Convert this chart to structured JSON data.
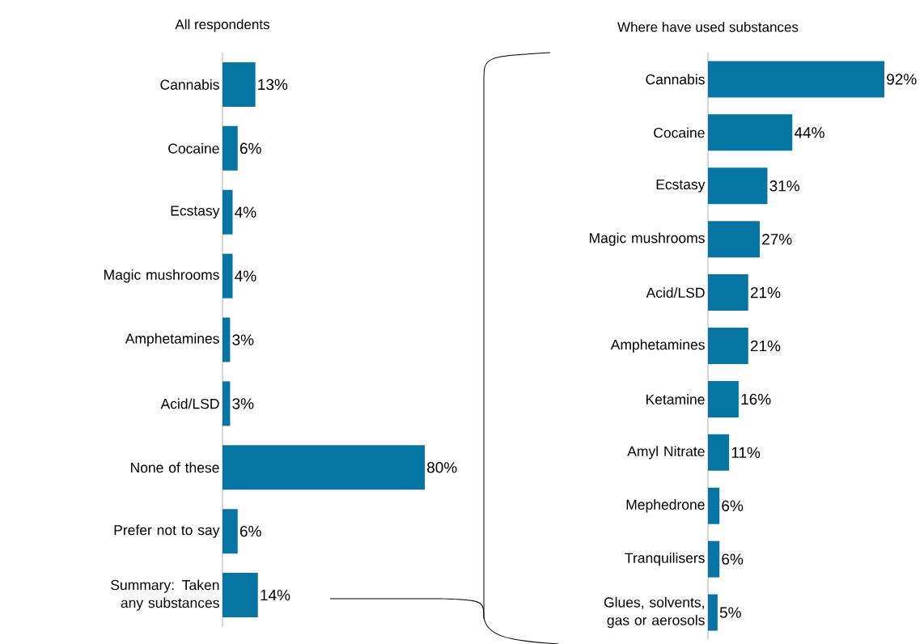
{
  "chart_data": [
    {
      "type": "bar",
      "orientation": "horizontal",
      "title": "All respondents",
      "categories": [
        "Cannabis",
        "Cocaine",
        "Ecstasy",
        "Magic mushrooms",
        "Amphetamines",
        "Acid/LSD",
        "None of these",
        "Prefer not to say",
        "Summary: Taken any substances"
      ],
      "values": [
        13,
        6,
        4,
        4,
        3,
        3,
        80,
        6,
        14
      ],
      "value_labels": [
        "13%",
        "6%",
        "4%",
        "4%",
        "3%",
        "3%",
        "80%",
        "6%",
        "14%"
      ],
      "color": "#0576a4",
      "tick_labels": "y"
    },
    {
      "type": "bar",
      "orientation": "horizontal",
      "title": "Where have used substances",
      "categories": [
        "Cannabis",
        "Cocaine",
        "Ecstasy",
        "Magic mushrooms",
        "Acid/LSD",
        "Amphetamines",
        "Ketamine",
        "Amyl Nitrate",
        "Mephedrone",
        "Tranquilisers",
        "Glues, solvents, gas or aerosols"
      ],
      "values": [
        92,
        44,
        31,
        27,
        21,
        21,
        16,
        11,
        6,
        6,
        5
      ],
      "value_labels": [
        "92%",
        "44%",
        "31%",
        "27%",
        "21%",
        "21%",
        "16%",
        "11%",
        "6%",
        "6%",
        "5%"
      ],
      "color": "#0576a4",
      "tick_labels": "y"
    }
  ]
}
